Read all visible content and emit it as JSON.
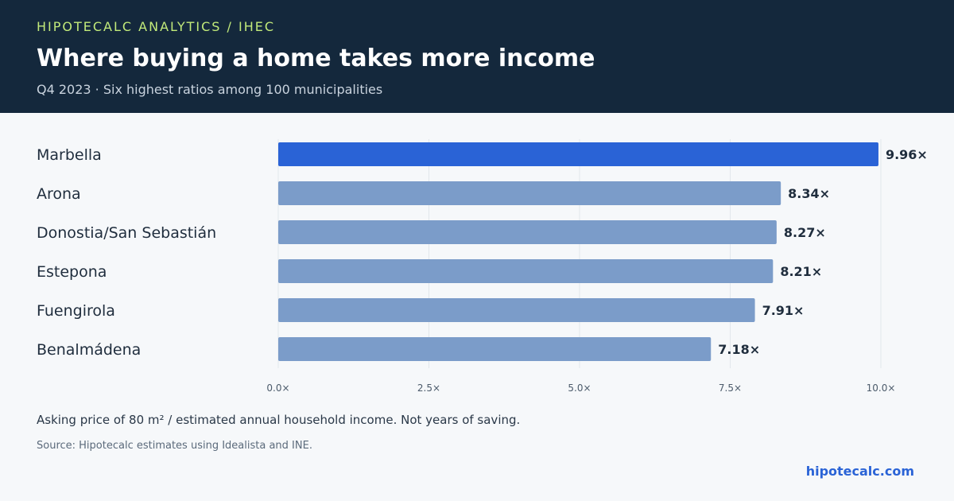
{
  "header": {
    "eyebrow": "HIPOTECALC ANALYTICS / IHEC",
    "title": "Where buying a home takes more income",
    "subtitle": "Q4 2023 · Six highest ratios among 100 municipalities"
  },
  "chart_data": {
    "type": "bar",
    "orientation": "horizontal",
    "categories": [
      "Marbella",
      "Arona",
      "Donostia/San Sebastián",
      "Estepona",
      "Fuengirola",
      "Benalmádena"
    ],
    "values": [
      9.96,
      8.34,
      8.27,
      8.21,
      7.91,
      7.18
    ],
    "value_labels": [
      "9.96×",
      "8.34×",
      "8.27×",
      "8.21×",
      "7.91×",
      "7.18×"
    ],
    "highlight_index": 0,
    "xlim": [
      0,
      10
    ],
    "x_ticks": [
      0,
      2.5,
      5,
      7.5,
      10
    ],
    "x_tick_labels": [
      "0.0×",
      "2.5×",
      "5.0×",
      "7.5×",
      "10.0×"
    ],
    "grid": "vertical",
    "colors": {
      "highlight": "#2a63d6",
      "default": "#7b9cc9",
      "grid": "#e2e7ec"
    }
  },
  "footer": {
    "note": "Asking price of 80 m² / estimated annual household income. Not years of saving.",
    "source": "Source: Hipotecalc estimates using Idealista and INE.",
    "brand": "hipotecalc.com"
  }
}
